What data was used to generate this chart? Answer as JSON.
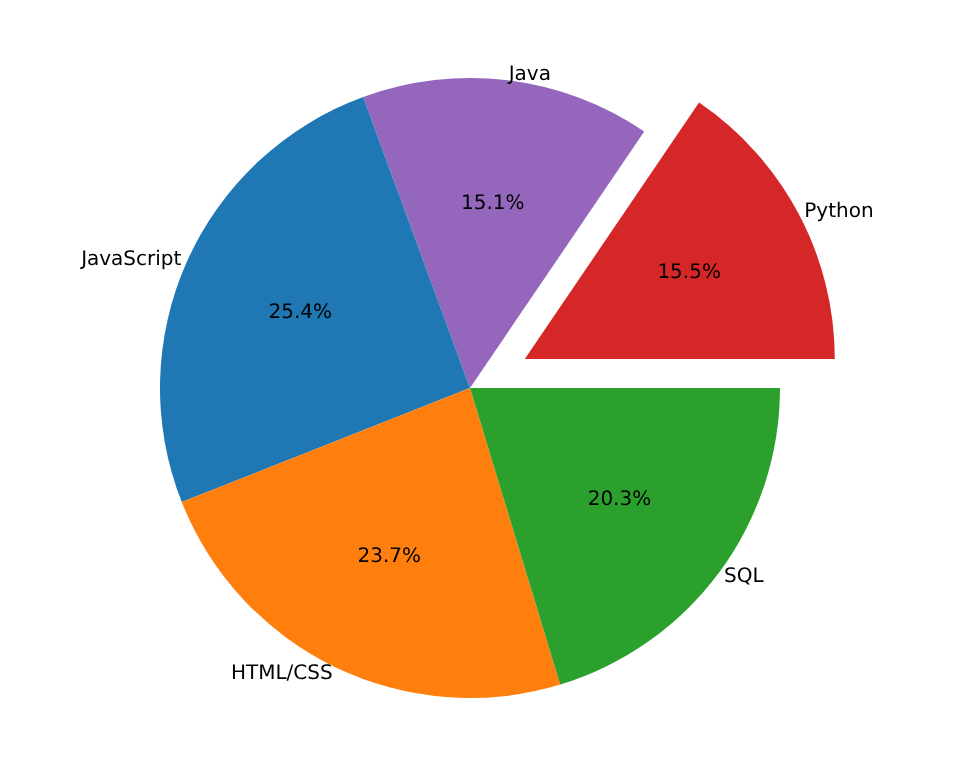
{
  "chart_data": {
    "type": "pie",
    "categories": [
      "Python",
      "Java",
      "JavaScript",
      "HTML/CSS",
      "SQL"
    ],
    "values": [
      15.5,
      15.1,
      25.4,
      23.7,
      20.3
    ],
    "colors": [
      "#d62728",
      "#9467bd",
      "#1f77b4",
      "#ff7f0e",
      "#2ca02c"
    ],
    "data_labels": true,
    "value_labels": [
      "15.5%",
      "15.1%",
      "25.4%",
      "23.7%",
      "20.3%"
    ]
  }
}
